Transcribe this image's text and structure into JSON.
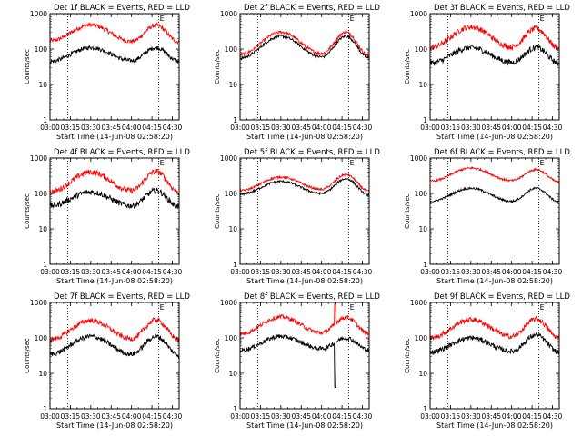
{
  "chart_data": {
    "type": "line",
    "xlabel": "Start Time (14-Jun-08 02:58:20)",
    "ylabel": "Counts/sec",
    "x_ticks": [
      "03:00",
      "03:15",
      "03:30",
      "03:45",
      "04:00",
      "04:15",
      "04:30"
    ],
    "y_ticks": [
      "1",
      "10",
      "100",
      "1000"
    ],
    "y_scale": "log",
    "ylim": [
      1,
      1000
    ],
    "xlim": [
      "03:00",
      "04:35"
    ],
    "markers": [
      {
        "time": "03:13",
        "label": ""
      },
      {
        "time": "04:20",
        "label": "E"
      }
    ],
    "legend_text": "BLACK = Events, RED = LLD",
    "series_colors": {
      "events": "#000000",
      "lld": "#ff0000"
    },
    "panels": [
      {
        "title": "Det 1f BLACK = Events, RED = LLD",
        "events_levels": [
          45,
          110,
          47,
          110,
          45
        ],
        "lld_levels": [
          170,
          480,
          165,
          470,
          160
        ],
        "noise": 0.06,
        "spikes": []
      },
      {
        "title": "Det 2f BLACK = Events, RED = LLD",
        "events_levels": [
          55,
          230,
          60,
          230,
          55
        ],
        "lld_levels": [
          70,
          300,
          75,
          300,
          65
        ],
        "noise": 0.04,
        "spikes": []
      },
      {
        "title": "Det 3f BLACK = Events, RED = LLD",
        "events_levels": [
          40,
          110,
          42,
          110,
          40
        ],
        "lld_levels": [
          110,
          420,
          115,
          380,
          105
        ],
        "noise": 0.08,
        "spikes": []
      },
      {
        "title": "Det 4f BLACK = Events, RED = LLD",
        "events_levels": [
          45,
          110,
          45,
          120,
          42
        ],
        "lld_levels": [
          110,
          400,
          120,
          420,
          110
        ],
        "noise": 0.08,
        "spikes": []
      },
      {
        "title": "Det 5f BLACK = Events, RED = LLD",
        "events_levels": [
          95,
          220,
          100,
          260,
          90
        ],
        "lld_levels": [
          120,
          290,
          130,
          340,
          115
        ],
        "noise": 0.03,
        "spikes": []
      },
      {
        "title": "Det 6f BLACK = Events, RED = LLD",
        "events_levels": [
          60,
          140,
          60,
          140,
          58
        ],
        "lld_levels": [
          220,
          520,
          230,
          470,
          210
        ],
        "noise": 0.03,
        "spikes": []
      },
      {
        "title": "Det 7f BLACK = Events, RED = LLD",
        "events_levels": [
          35,
          110,
          35,
          110,
          33
        ],
        "lld_levels": [
          90,
          310,
          95,
          320,
          90
        ],
        "noise": 0.07,
        "spikes": []
      },
      {
        "title": "Det 8f BLACK = Events, RED = LLD",
        "events_levels": [
          45,
          110,
          50,
          100,
          45
        ],
        "lld_levels": [
          130,
          390,
          140,
          380,
          130
        ],
        "noise": 0.06,
        "spikes": [
          {
            "time": "04:10",
            "events_min": 4,
            "lld_max": 1000
          }
        ]
      },
      {
        "title": "Det 9f BLACK = Events, RED = LLD",
        "events_levels": [
          40,
          100,
          42,
          120,
          40
        ],
        "lld_levels": [
          100,
          330,
          110,
          340,
          100
        ],
        "noise": 0.07,
        "spikes": []
      }
    ]
  }
}
